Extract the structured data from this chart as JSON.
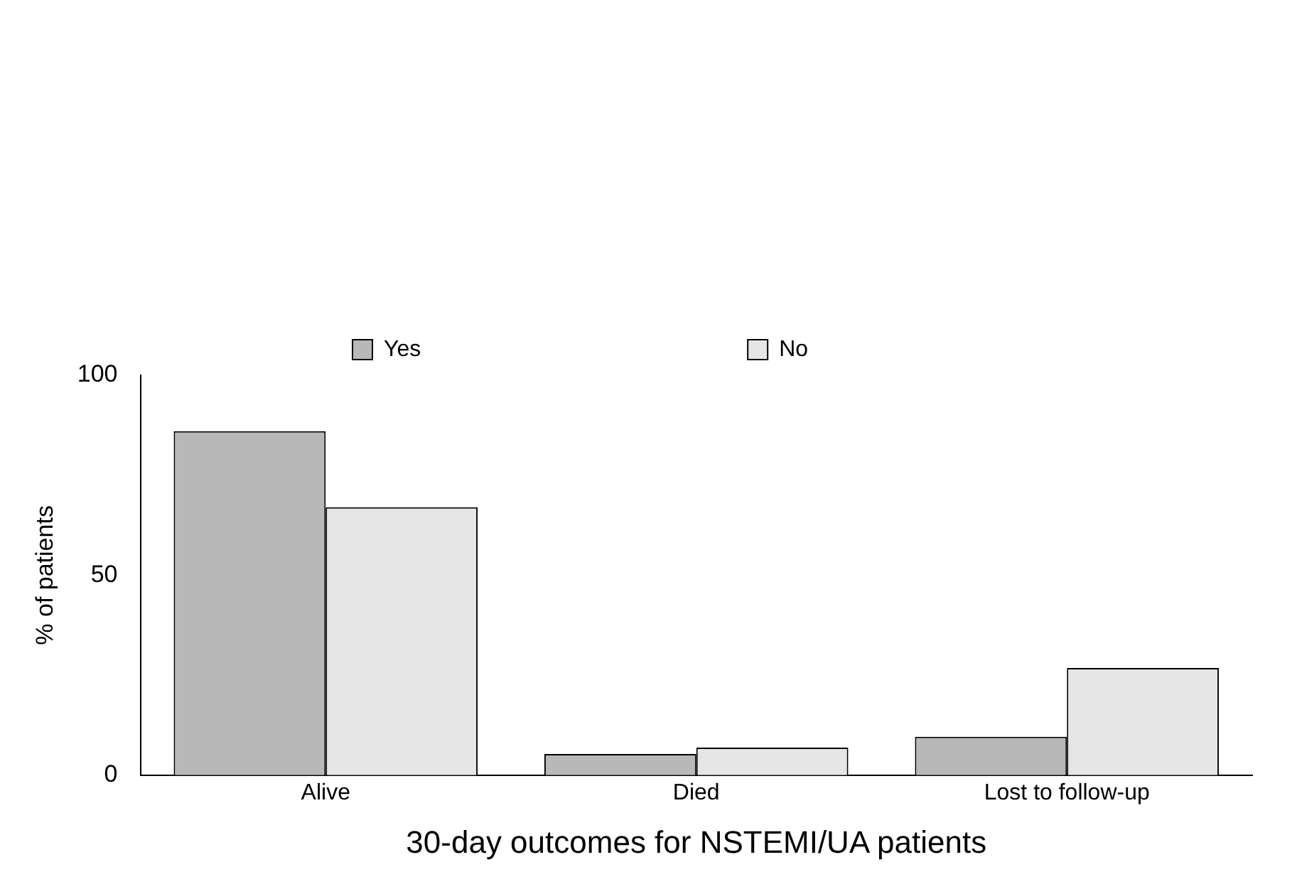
{
  "chart_data": {
    "type": "bar",
    "xlabel": "30-day outcomes for NSTEMI/UA patients",
    "ylabel": "% of patients",
    "categories": [
      "Alive",
      "Died",
      "Lost to follow-up"
    ],
    "series": [
      {
        "name": "Yes",
        "color": "#b8b8b8",
        "values": [
          86,
          5.3,
          9.6
        ]
      },
      {
        "name": "No",
        "color": "#e6e6e6",
        "values": [
          67,
          6.9,
          26.8
        ]
      }
    ],
    "ylim": [
      0,
      100
    ],
    "yticks": [
      0,
      50,
      100
    ],
    "grid": false,
    "legend": "top"
  }
}
